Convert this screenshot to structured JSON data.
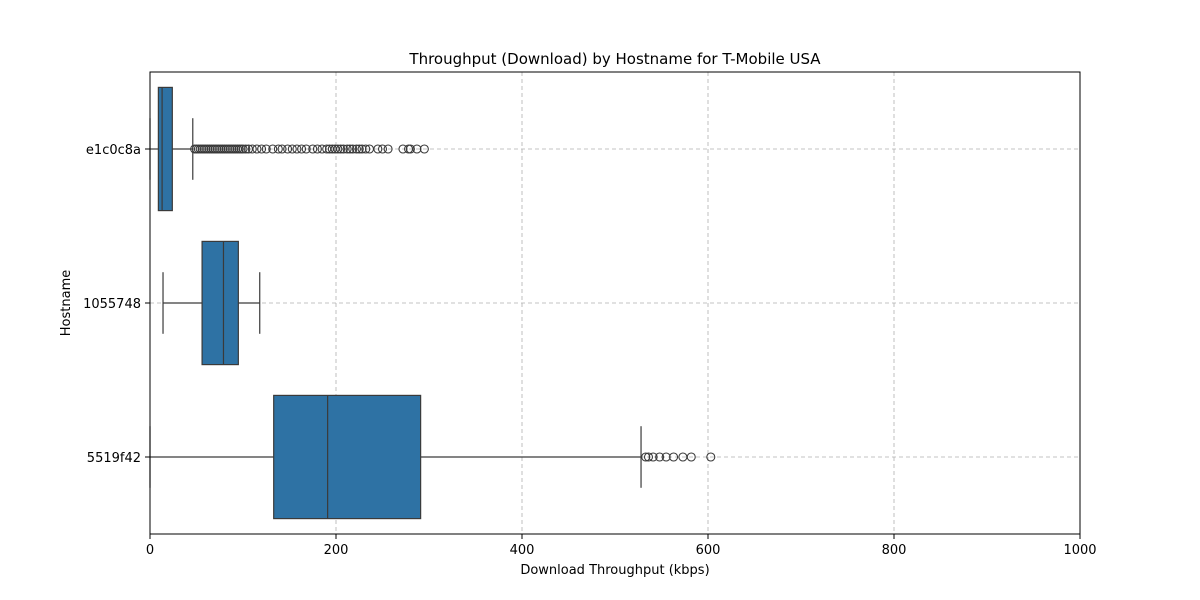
{
  "chart_data": {
    "type": "boxplot",
    "orientation": "horizontal",
    "title": "Throughput (Download) by Hostname for T-Mobile USA",
    "xlabel": "Download Throughput (kbps)",
    "ylabel": "Hostname",
    "xlim": [
      0,
      1000
    ],
    "xticks": [
      "0",
      "200",
      "400",
      "600",
      "800",
      "1000"
    ],
    "grid": true,
    "box_color": "#2e72a4",
    "line_color": "#3a3a3a",
    "series": [
      {
        "category": "e1c0c8a",
        "whisker_low": 0,
        "q1": 9,
        "median": 13,
        "q3": 24,
        "whisker_high": 46,
        "outliers": [
          48,
          50,
          52,
          54,
          56,
          58,
          60,
          62,
          64,
          66,
          68,
          70,
          72,
          74,
          76,
          78,
          80,
          82,
          84,
          86,
          88,
          90,
          92,
          94,
          96,
          98,
          100,
          103,
          106,
          110,
          115,
          120,
          125,
          132,
          138,
          142,
          148,
          153,
          158,
          163,
          168,
          175,
          180,
          185,
          190,
          193,
          196,
          199,
          202,
          205,
          208,
          212,
          215,
          218,
          222,
          225,
          228,
          232,
          236,
          245,
          250,
          256,
          272,
          278,
          280,
          287,
          295
        ]
      },
      {
        "category": "1055748",
        "whisker_low": 14,
        "q1": 56,
        "median": 79,
        "q3": 95,
        "whisker_high": 118,
        "outliers": []
      },
      {
        "category": "5519f42",
        "whisker_low": 0,
        "q1": 133,
        "median": 191,
        "q3": 291,
        "whisker_high": 528,
        "outliers": [
          533,
          536,
          541,
          548,
          555,
          563,
          573,
          582,
          603
        ]
      }
    ]
  }
}
